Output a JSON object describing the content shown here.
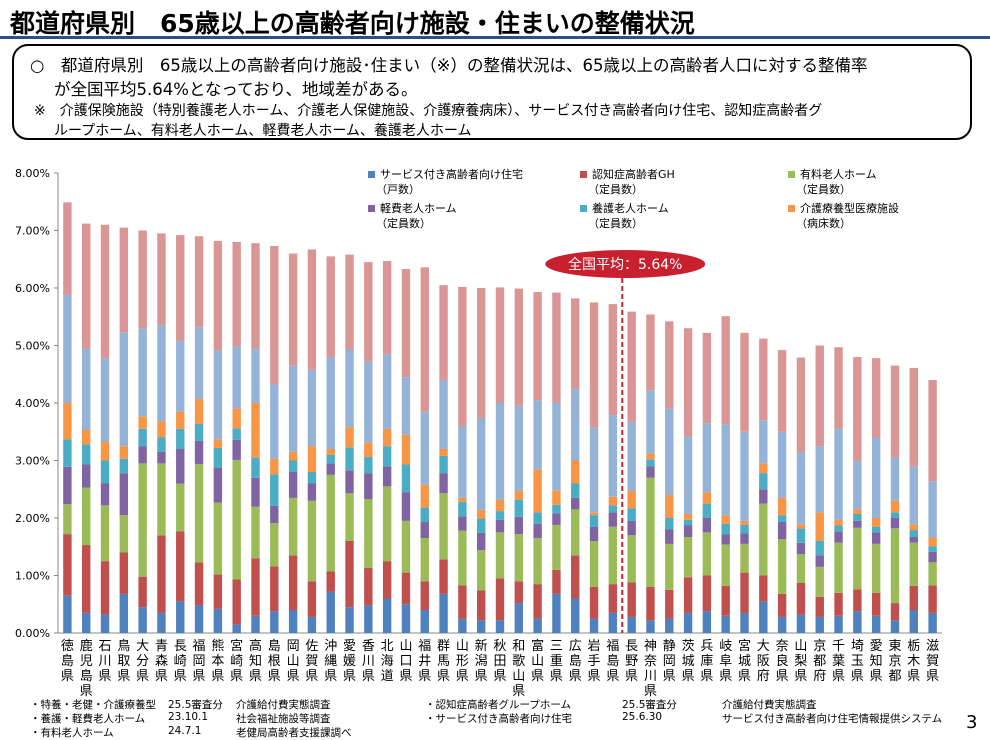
{
  "header": {
    "title": "都道府県別　65歳以上の高齢者向け施設・住まいの整備状況"
  },
  "summary": {
    "line1": "○　都道府県別　65歳以上の高齢者向け施設･住まい（※）の整備状況は、65歳以上の高齢者人口に対する整備率",
    "line2": "が全国平均5.64%となっており、地域差がある。",
    "note1": "※　介護保険施設（特別養護老人ホーム、介護老人保健施設、介護療養病床）、サービス付き高齢者向け住宅、認知症高齢者グ",
    "note2": "ループホーム、有料老人ホーム、軽費老人ホーム、養護老人ホーム"
  },
  "chart_data": {
    "type": "bar",
    "stacked": true,
    "ylim": [
      0,
      8
    ],
    "y_ticks": [
      "0.00%",
      "1.00%",
      "2.00%",
      "3.00%",
      "4.00%",
      "5.00%",
      "6.00%",
      "7.00%",
      "8.00%"
    ],
    "average": {
      "value": 5.64,
      "label": "全国平均：5.64%",
      "color": "#c8202f"
    },
    "categories": [
      "徳島県",
      "鹿児島県",
      "石川県",
      "鳥取県",
      "大分県",
      "青森県",
      "長崎県",
      "福岡県",
      "熊本県",
      "宮崎県",
      "高知県",
      "島根県",
      "岡山県",
      "佐賀県",
      "沖縄県",
      "愛媛県",
      "香川県",
      "北海道",
      "山口県",
      "福井県",
      "群馬県",
      "山形県",
      "新潟県",
      "秋田県",
      "和歌山県",
      "富山県",
      "三重県",
      "広島県",
      "岩手県",
      "福島県",
      "長野県",
      "神奈川県",
      "静岡県",
      "茨城県",
      "兵庫県",
      "岐阜県",
      "宮城県",
      "大阪府",
      "奈良県",
      "山梨県",
      "京都府",
      "千葉県",
      "埼玉県",
      "愛知県",
      "東京都",
      "栃木県",
      "滋賀県"
    ],
    "series": [
      {
        "name": "サービス付き高齢者向け住宅",
        "unit": "（戸数）",
        "color": "#4e81bd",
        "values": [
          0.65,
          0.35,
          0.32,
          0.68,
          0.45,
          0.35,
          0.55,
          0.48,
          0.42,
          0.15,
          0.3,
          0.38,
          0.4,
          0.28,
          0.72,
          0.45,
          0.48,
          0.6,
          0.5,
          0.4,
          0.68,
          0.25,
          0.22,
          0.22,
          0.52,
          0.25,
          0.68,
          0.6,
          0.25,
          0.35,
          0.28,
          0.22,
          0.25,
          0.35,
          0.38,
          0.3,
          0.35,
          0.55,
          0.28,
          0.32,
          0.28,
          0.3,
          0.38,
          0.3,
          0.22,
          0.4,
          0.35
        ]
      },
      {
        "name": "認知症高齢者GH",
        "unit": "（定員数）",
        "color": "#c0504e",
        "values": [
          1.07,
          1.18,
          0.93,
          0.72,
          0.53,
          1.35,
          1.22,
          0.75,
          0.6,
          0.78,
          1.0,
          0.78,
          0.95,
          0.62,
          0.35,
          1.15,
          0.65,
          0.65,
          0.55,
          0.5,
          0.6,
          0.58,
          0.52,
          0.73,
          0.38,
          0.6,
          0.42,
          0.75,
          0.55,
          0.5,
          0.6,
          0.58,
          0.5,
          0.62,
          0.62,
          0.52,
          0.7,
          0.45,
          0.4,
          0.55,
          0.35,
          0.4,
          0.38,
          0.4,
          0.3,
          0.42,
          0.48
        ]
      },
      {
        "name": "有料老人ホーム",
        "unit": "（定員数）",
        "color": "#9bbb58",
        "values": [
          0.52,
          1.0,
          0.97,
          0.65,
          1.97,
          1.25,
          0.83,
          1.71,
          1.25,
          2.08,
          0.9,
          0.75,
          1.0,
          1.4,
          1.68,
          0.83,
          1.2,
          1.3,
          0.9,
          0.75,
          1.15,
          0.95,
          0.7,
          0.8,
          0.82,
          0.8,
          0.78,
          0.8,
          0.8,
          1.0,
          0.82,
          1.9,
          0.8,
          0.7,
          0.75,
          0.72,
          0.5,
          1.25,
          0.95,
          0.5,
          0.52,
          0.87,
          1.07,
          0.85,
          1.3,
          0.75,
          0.4
        ]
      },
      {
        "name": "軽費老人ホーム",
        "unit": "（定員数）",
        "color": "#8064a2",
        "values": [
          0.65,
          0.4,
          0.38,
          0.73,
          0.3,
          0.2,
          0.6,
          0.4,
          0.6,
          0.35,
          0.5,
          0.3,
          0.45,
          0.3,
          0.2,
          0.4,
          0.45,
          0.35,
          0.5,
          0.28,
          0.35,
          0.25,
          0.3,
          0.22,
          0.3,
          0.25,
          0.2,
          0.2,
          0.25,
          0.25,
          0.25,
          0.2,
          0.25,
          0.2,
          0.25,
          0.18,
          0.18,
          0.25,
          0.3,
          0.2,
          0.2,
          0.2,
          0.12,
          0.2,
          0.18,
          0.1,
          0.18
        ]
      },
      {
        "name": "養護老人ホーム",
        "unit": "（定員数）",
        "color": "#4bacc6",
        "values": [
          0.48,
          0.35,
          0.4,
          0.25,
          0.3,
          0.25,
          0.35,
          0.3,
          0.35,
          0.2,
          0.35,
          0.55,
          0.2,
          0.2,
          0.15,
          0.4,
          0.28,
          0.35,
          0.48,
          0.25,
          0.3,
          0.25,
          0.25,
          0.15,
          0.3,
          0.2,
          0.15,
          0.25,
          0.2,
          0.12,
          0.22,
          0.12,
          0.2,
          0.1,
          0.25,
          0.18,
          0.15,
          0.28,
          0.12,
          0.25,
          0.25,
          0.1,
          0.12,
          0.1,
          0.1,
          0.12,
          0.1
        ]
      },
      {
        "name": "介護療養型医療施設",
        "unit": "（病床数）",
        "color": "#f79646",
        "values": [
          0.63,
          0.25,
          0.33,
          0.22,
          0.22,
          0.28,
          0.3,
          0.43,
          0.15,
          0.35,
          0.95,
          0.27,
          0.15,
          0.45,
          0.1,
          0.35,
          0.25,
          0.3,
          0.52,
          0.4,
          0.12,
          0.07,
          0.15,
          0.2,
          0.15,
          0.75,
          0.25,
          0.4,
          0.05,
          0.15,
          0.3,
          0.1,
          0.4,
          0.1,
          0.2,
          0.15,
          0.07,
          0.17,
          0.3,
          0.07,
          0.5,
          0.1,
          0.08,
          0.15,
          0.2,
          0.1,
          0.15
        ]
      },
      {
        "name": "介護老人保健施設",
        "color": "#95b3d7",
        "values": [
          1.88,
          1.42,
          1.45,
          1.98,
          1.53,
          1.68,
          1.23,
          1.25,
          1.55,
          1.08,
          0.95,
          1.3,
          1.5,
          1.33,
          1.6,
          1.35,
          1.41,
          1.3,
          1.0,
          1.27,
          1.2,
          1.25,
          1.6,
          1.68,
          1.48,
          1.2,
          1.52,
          1.25,
          1.48,
          1.42,
          1.2,
          1.1,
          1.5,
          1.35,
          1.2,
          1.58,
          1.55,
          0.75,
          1.15,
          1.25,
          1.15,
          1.58,
          0.85,
          1.4,
          0.75,
          1.0,
          0.98
        ]
      },
      {
        "name": "特別養護老人ホーム",
        "color": "#da9694",
        "values": [
          1.61,
          2.17,
          2.32,
          1.82,
          1.7,
          1.59,
          1.84,
          1.58,
          1.9,
          1.81,
          1.83,
          2.4,
          1.95,
          2.09,
          1.75,
          1.65,
          1.73,
          1.62,
          1.88,
          2.51,
          1.65,
          2.42,
          2.26,
          2.01,
          2.04,
          1.88,
          1.92,
          1.57,
          2.17,
          1.93,
          1.92,
          1.32,
          1.52,
          1.88,
          1.57,
          1.88,
          1.72,
          1.42,
          1.42,
          1.65,
          1.75,
          1.42,
          1.8,
          1.38,
          1.6,
          1.72,
          1.76
        ]
      }
    ]
  },
  "sources": [
    {
      "name": "・特養・老健・介護療養型",
      "date": "25.5審査分",
      "survey": "介護給付費実態調査"
    },
    {
      "name": "・養護・軽費老人ホーム",
      "date": "23.10.1",
      "survey": "社会福祉施設等調査"
    },
    {
      "name": "・有料老人ホーム",
      "date": "24.7.1",
      "survey": "老健局高齢者支援課調べ"
    },
    {
      "name": "・認知症高齢者グループホーム",
      "date": "25.5審査分",
      "survey": "介護給付費実態調査"
    },
    {
      "name": "・サービス付き高齢者向け住宅",
      "date": "25.6.30",
      "survey": "サービス付き高齢者向け住宅情報提供システム"
    }
  ],
  "page_number": "3"
}
